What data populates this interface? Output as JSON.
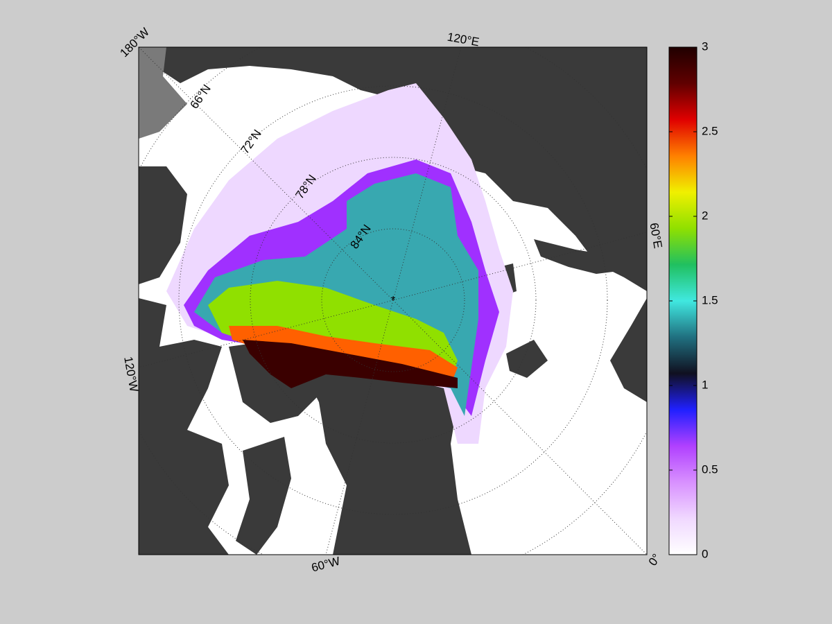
{
  "map": {
    "lon_labels": [
      "180°W",
      "120°E",
      "60°E",
      "0°",
      "60°W",
      "120°W"
    ],
    "lat_labels": [
      "66°N",
      "72°N",
      "78°N",
      "84°N"
    ]
  },
  "colorbar": {
    "lim": [
      0,
      3
    ],
    "ticks": [
      0,
      0.5,
      1,
      1.5,
      2,
      2.5,
      3
    ],
    "colors": [
      "#ffffff",
      "#f0d8ff",
      "#d890ff",
      "#b040ff",
      "#2020ff",
      "#101020",
      "#207080",
      "#40e8e0",
      "#20c060",
      "#90e000",
      "#f0f000",
      "#ff8000",
      "#e00000",
      "#600000",
      "#200000"
    ]
  }
}
